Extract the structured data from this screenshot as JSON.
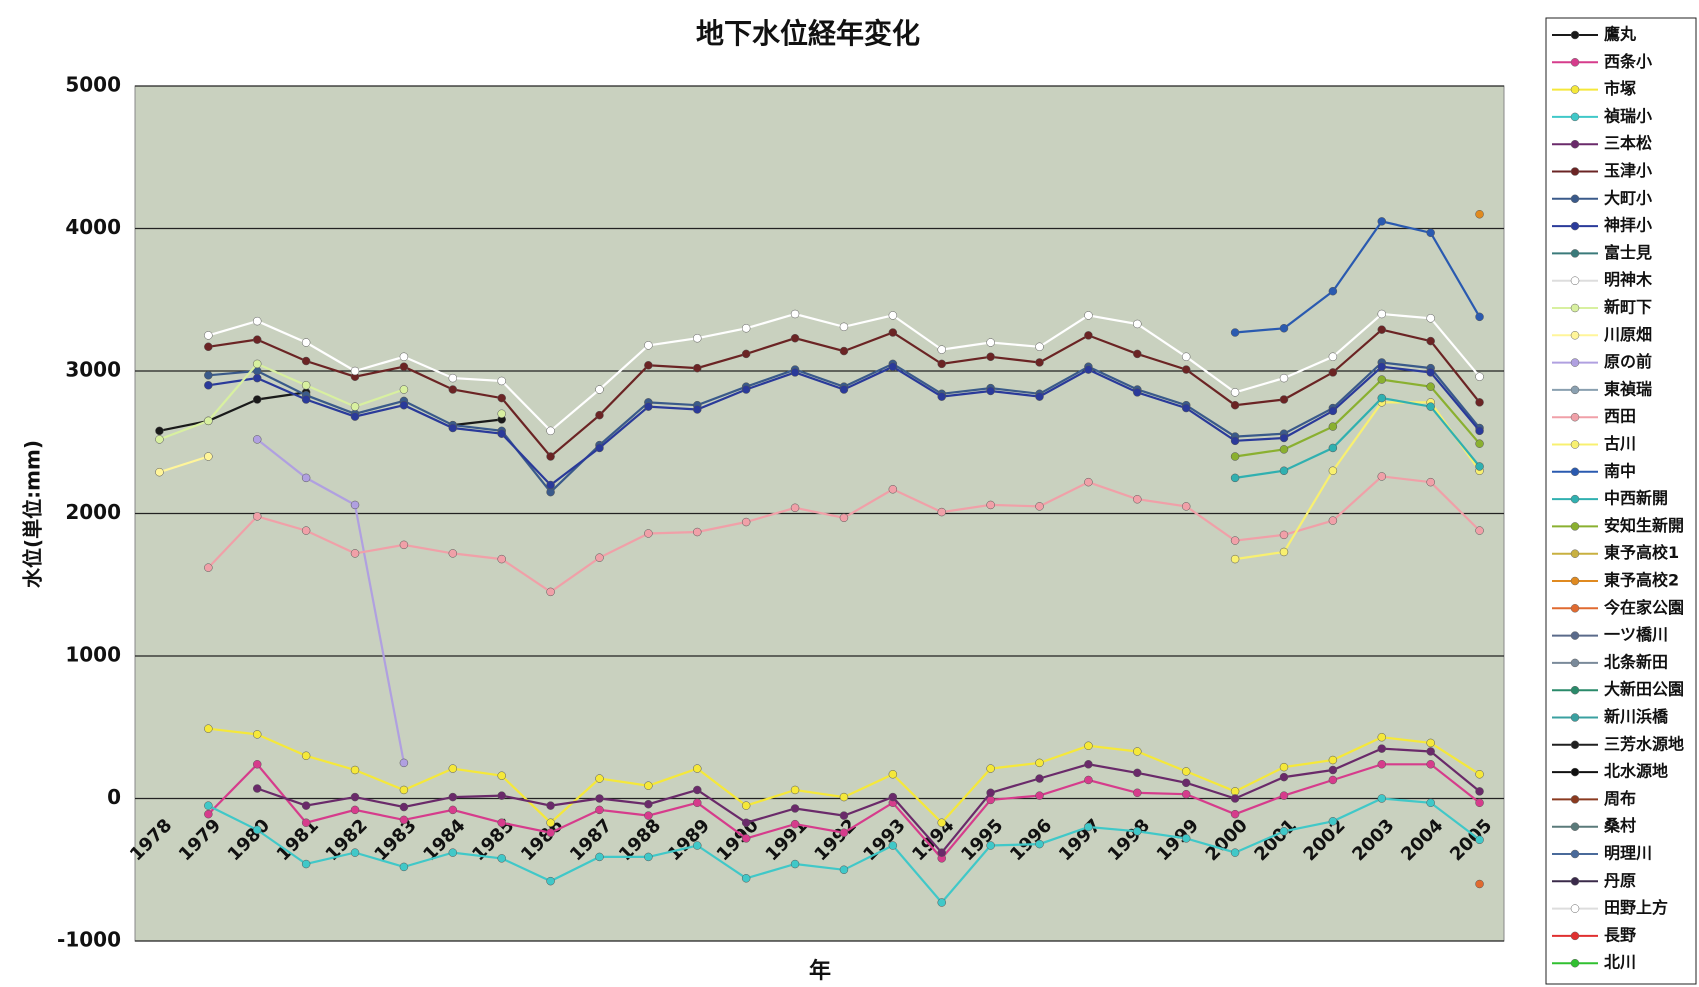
{
  "chart_data": {
    "type": "line",
    "title": "地下水位経年変化",
    "x_label": "年",
    "y_label": "水位(単位:mm)",
    "categories": [
      "1978",
      "1979",
      "1980",
      "1981",
      "1982",
      "1983",
      "1984",
      "1985",
      "1986",
      "1987",
      "1988",
      "1989",
      "1990",
      "1991",
      "1992",
      "1993",
      "1994",
      "1995",
      "1996",
      "1997",
      "1998",
      "1999",
      "2000",
      "2001",
      "2002",
      "2003",
      "2004",
      "2005"
    ],
    "ylim": [
      -1000,
      5000
    ],
    "yticks": [
      -1000,
      0,
      1000,
      2000,
      3000,
      4000,
      5000
    ],
    "grid": true,
    "legend": "right",
    "series": [
      {
        "name": "鷹丸",
        "color": "#1a1a1a",
        "values": [
          2580,
          2650,
          2800,
          2850,
          null,
          null,
          2620,
          2660,
          null,
          null,
          null,
          null,
          null,
          null,
          null,
          null,
          null,
          null,
          null,
          null,
          null,
          null,
          null,
          null,
          null,
          null,
          null,
          null
        ]
      },
      {
        "name": "西条小",
        "color": "#d63c8c",
        "values": [
          null,
          -110,
          240,
          -170,
          -80,
          -150,
          -80,
          -170,
          -240,
          -80,
          -120,
          -30,
          -280,
          -180,
          -240,
          -30,
          -420,
          -10,
          20,
          130,
          40,
          30,
          -110,
          20,
          130,
          240,
          240,
          -30
        ]
      },
      {
        "name": "市塚",
        "color": "#f5e83a",
        "values": [
          null,
          490,
          450,
          300,
          200,
          60,
          210,
          160,
          -170,
          140,
          90,
          210,
          -50,
          60,
          10,
          170,
          -170,
          210,
          250,
          370,
          330,
          190,
          50,
          220,
          270,
          430,
          390,
          170
        ]
      },
      {
        "name": "禎瑞小",
        "color": "#40c8c8",
        "values": [
          null,
          -50,
          -220,
          -460,
          -380,
          -480,
          -380,
          -420,
          -580,
          -410,
          -410,
          -330,
          -560,
          -460,
          -500,
          -330,
          -730,
          -330,
          -320,
          -200,
          -230,
          -280,
          -380,
          -230,
          -160,
          0,
          -30,
          -290
        ]
      },
      {
        "name": "三本松",
        "color": "#6a2a6a",
        "values": [
          null,
          null,
          70,
          -50,
          10,
          -60,
          10,
          20,
          -50,
          0,
          -40,
          60,
          -170,
          -70,
          -120,
          10,
          -380,
          40,
          140,
          240,
          180,
          110,
          0,
          150,
          200,
          350,
          330,
          50
        ]
      },
      {
        "name": "玉津小",
        "color": "#6b2424",
        "values": [
          null,
          3170,
          3220,
          3070,
          2960,
          3030,
          2870,
          2810,
          2400,
          2690,
          3040,
          3020,
          3120,
          3230,
          3140,
          3270,
          3050,
          3100,
          3060,
          3250,
          3120,
          3010,
          2760,
          2800,
          2990,
          3290,
          3210,
          2780
        ]
      },
      {
        "name": "大町小",
        "color": "#3a5a8a",
        "values": [
          null,
          2970,
          3000,
          2830,
          2700,
          2790,
          2620,
          2580,
          2150,
          2480,
          2780,
          2760,
          2890,
          3010,
          2890,
          3050,
          2840,
          2880,
          2840,
          3030,
          2870,
          2760,
          2540,
          2560,
          2740,
          3060,
          3020,
          2600
        ]
      },
      {
        "name": "神拝小",
        "color": "#2a3a9a",
        "values": [
          null,
          2900,
          2950,
          2800,
          2680,
          2760,
          2600,
          2560,
          2200,
          2460,
          2750,
          2730,
          2870,
          2990,
          2870,
          3030,
          2820,
          2860,
          2820,
          3010,
          2850,
          2740,
          2510,
          2530,
          2720,
          3030,
          2990,
          2580
        ]
      },
      {
        "name": "富士見",
        "color": "#3a7a7a",
        "values": [
          null,
          null,
          null,
          null,
          null,
          null,
          null,
          null,
          null,
          null,
          null,
          null,
          null,
          null,
          null,
          null,
          null,
          null,
          null,
          null,
          null,
          null,
          null,
          null,
          null,
          null,
          null,
          null
        ]
      },
      {
        "name": "明神木",
        "color": "#ffffff",
        "values": [
          null,
          3250,
          3350,
          3200,
          3000,
          3100,
          2950,
          2930,
          2580,
          2870,
          3180,
          3230,
          3300,
          3400,
          3310,
          3390,
          3150,
          3200,
          3170,
          3390,
          3330,
          3100,
          2850,
          2950,
          3100,
          3400,
          3370,
          2960
        ]
      },
      {
        "name": "新町下",
        "color": "#d8f0a0",
        "values": [
          2520,
          2650,
          3050,
          2900,
          2750,
          2870,
          null,
          2700,
          null,
          null,
          null,
          null,
          null,
          null,
          null,
          null,
          null,
          null,
          null,
          null,
          null,
          null,
          null,
          null,
          null,
          null,
          null,
          null
        ]
      },
      {
        "name": "川原畑",
        "color": "#fff59a",
        "values": [
          2290,
          2400,
          null,
          null,
          null,
          null,
          null,
          null,
          null,
          null,
          null,
          null,
          null,
          null,
          null,
          null,
          null,
          null,
          null,
          null,
          null,
          null,
          null,
          null,
          null,
          null,
          null,
          null
        ]
      },
      {
        "name": "原の前",
        "color": "#b0a0e0",
        "values": [
          null,
          null,
          2520,
          2250,
          2060,
          250,
          null,
          null,
          null,
          null,
          null,
          null,
          null,
          null,
          null,
          null,
          null,
          null,
          null,
          null,
          null,
          null,
          null,
          null,
          null,
          null,
          null,
          null
        ]
      },
      {
        "name": "東禎瑞",
        "color": "#8aa0b0",
        "values": [
          null,
          null,
          null,
          null,
          null,
          null,
          null,
          null,
          null,
          null,
          null,
          null,
          null,
          null,
          null,
          null,
          null,
          null,
          null,
          null,
          null,
          null,
          null,
          null,
          null,
          null,
          null,
          null
        ]
      },
      {
        "name": "西田",
        "color": "#f0a0a8",
        "values": [
          null,
          1620,
          1980,
          1880,
          1720,
          1780,
          1720,
          1680,
          1450,
          1690,
          1860,
          1870,
          1940,
          2040,
          1970,
          2170,
          2010,
          2060,
          2050,
          2220,
          2100,
          2050,
          1810,
          1850,
          1950,
          2260,
          2220,
          1880
        ]
      },
      {
        "name": "古川",
        "color": "#f8f070",
        "values": [
          null,
          null,
          null,
          null,
          null,
          null,
          null,
          null,
          null,
          null,
          null,
          null,
          null,
          null,
          null,
          null,
          null,
          null,
          null,
          null,
          null,
          null,
          1680,
          1730,
          2300,
          2780,
          2780,
          2300
        ]
      },
      {
        "name": "南中",
        "color": "#2a5ab0",
        "values": [
          null,
          null,
          null,
          null,
          null,
          null,
          null,
          null,
          null,
          null,
          null,
          null,
          null,
          null,
          null,
          null,
          null,
          null,
          null,
          null,
          null,
          null,
          3270,
          3300,
          3560,
          4050,
          3970,
          3380
        ]
      },
      {
        "name": "中西新開",
        "color": "#30b0b0",
        "values": [
          null,
          null,
          null,
          null,
          null,
          null,
          null,
          null,
          null,
          null,
          null,
          null,
          null,
          null,
          null,
          null,
          null,
          null,
          null,
          null,
          null,
          null,
          2250,
          2300,
          2460,
          2810,
          2750,
          2330
        ]
      },
      {
        "name": "安知生新開",
        "color": "#8ab030",
        "values": [
          null,
          null,
          null,
          null,
          null,
          null,
          null,
          null,
          null,
          null,
          null,
          null,
          null,
          null,
          null,
          null,
          null,
          null,
          null,
          null,
          null,
          null,
          2400,
          2450,
          2610,
          2940,
          2890,
          2490
        ]
      },
      {
        "name": "東予高校1",
        "color": "#c8b040",
        "values": [
          null,
          null,
          null,
          null,
          null,
          null,
          null,
          null,
          null,
          null,
          null,
          null,
          null,
          null,
          null,
          null,
          null,
          null,
          null,
          null,
          null,
          null,
          null,
          null,
          null,
          null,
          null,
          null
        ]
      },
      {
        "name": "東予高校2",
        "color": "#e08a20",
        "values": [
          null,
          null,
          null,
          null,
          null,
          null,
          null,
          null,
          null,
          null,
          null,
          null,
          null,
          null,
          null,
          null,
          null,
          null,
          null,
          null,
          null,
          null,
          null,
          null,
          null,
          null,
          null,
          4100
        ]
      },
      {
        "name": "今在家公園",
        "color": "#e06a30",
        "values": [
          null,
          null,
          null,
          null,
          null,
          null,
          null,
          null,
          null,
          null,
          null,
          null,
          null,
          null,
          null,
          null,
          null,
          null,
          null,
          null,
          null,
          null,
          null,
          null,
          null,
          null,
          null,
          -600
        ]
      },
      {
        "name": "一ツ橋川",
        "color": "#5a6a8a",
        "values": [
          null,
          null,
          null,
          null,
          null,
          null,
          null,
          null,
          null,
          null,
          null,
          null,
          null,
          null,
          null,
          null,
          null,
          null,
          null,
          null,
          null,
          null,
          null,
          null,
          null,
          null,
          null,
          null
        ]
      },
      {
        "name": "北条新田",
        "color": "#7a8a9a",
        "values": [
          null,
          null,
          null,
          null,
          null,
          null,
          null,
          null,
          null,
          null,
          null,
          null,
          null,
          null,
          null,
          null,
          null,
          null,
          null,
          null,
          null,
          null,
          null,
          null,
          null,
          null,
          null,
          null
        ]
      },
      {
        "name": "大新田公園",
        "color": "#2a8a6a",
        "values": [
          null,
          null,
          null,
          null,
          null,
          null,
          null,
          null,
          null,
          null,
          null,
          null,
          null,
          null,
          null,
          null,
          null,
          null,
          null,
          null,
          null,
          null,
          null,
          null,
          null,
          null,
          null,
          null
        ]
      },
      {
        "name": "新川浜橋",
        "color": "#3aa0a0",
        "values": [
          null,
          null,
          null,
          null,
          null,
          null,
          null,
          null,
          null,
          null,
          null,
          null,
          null,
          null,
          null,
          null,
          null,
          null,
          null,
          null,
          null,
          null,
          null,
          null,
          null,
          null,
          null,
          null
        ]
      },
      {
        "name": "三芳水源地",
        "color": "#202020",
        "values": [
          null,
          null,
          null,
          null,
          null,
          null,
          null,
          null,
          null,
          null,
          null,
          null,
          null,
          null,
          null,
          null,
          null,
          null,
          null,
          null,
          null,
          null,
          null,
          null,
          null,
          null,
          null,
          null
        ]
      },
      {
        "name": "北水源地",
        "color": "#101010",
        "values": [
          null,
          null,
          null,
          null,
          null,
          null,
          null,
          null,
          null,
          null,
          null,
          null,
          null,
          null,
          null,
          null,
          null,
          null,
          null,
          null,
          null,
          null,
          null,
          null,
          null,
          null,
          null,
          null
        ]
      },
      {
        "name": "周布",
        "color": "#8a3a20",
        "values": [
          null,
          null,
          null,
          null,
          null,
          null,
          null,
          null,
          null,
          null,
          null,
          null,
          null,
          null,
          null,
          null,
          null,
          null,
          null,
          null,
          null,
          null,
          null,
          null,
          null,
          null,
          null,
          null
        ]
      },
      {
        "name": "桑村",
        "color": "#5a7a7a",
        "values": [
          null,
          null,
          null,
          null,
          null,
          null,
          null,
          null,
          null,
          null,
          null,
          null,
          null,
          null,
          null,
          null,
          null,
          null,
          null,
          null,
          null,
          null,
          null,
          null,
          null,
          null,
          null,
          null
        ]
      },
      {
        "name": "明理川",
        "color": "#4a6a9a",
        "values": [
          null,
          null,
          null,
          null,
          null,
          null,
          null,
          null,
          null,
          null,
          null,
          null,
          null,
          null,
          null,
          null,
          null,
          null,
          null,
          null,
          null,
          null,
          null,
          null,
          null,
          null,
          null,
          null
        ]
      },
      {
        "name": "丹原",
        "color": "#3a2a4a",
        "values": [
          null,
          null,
          null,
          null,
          null,
          null,
          null,
          null,
          null,
          null,
          null,
          null,
          null,
          null,
          null,
          null,
          null,
          null,
          null,
          null,
          null,
          null,
          null,
          null,
          null,
          null,
          null,
          null
        ]
      },
      {
        "name": "田野上方",
        "color": "#ffffff",
        "values": [
          null,
          null,
          null,
          null,
          null,
          null,
          null,
          null,
          null,
          null,
          null,
          null,
          null,
          null,
          null,
          null,
          null,
          null,
          null,
          null,
          null,
          null,
          null,
          null,
          null,
          null,
          null,
          null
        ]
      },
      {
        "name": "長野",
        "color": "#e03030",
        "values": [
          null,
          null,
          null,
          null,
          null,
          null,
          null,
          null,
          null,
          null,
          null,
          null,
          null,
          null,
          null,
          null,
          null,
          null,
          null,
          null,
          null,
          null,
          null,
          null,
          null,
          null,
          null,
          null
        ]
      },
      {
        "name": "北川",
        "color": "#30c030",
        "values": [
          null,
          null,
          null,
          null,
          null,
          null,
          null,
          null,
          null,
          null,
          null,
          null,
          null,
          null,
          null,
          null,
          null,
          null,
          null,
          null,
          null,
          null,
          null,
          null,
          null,
          null,
          null,
          null
        ]
      }
    ]
  }
}
